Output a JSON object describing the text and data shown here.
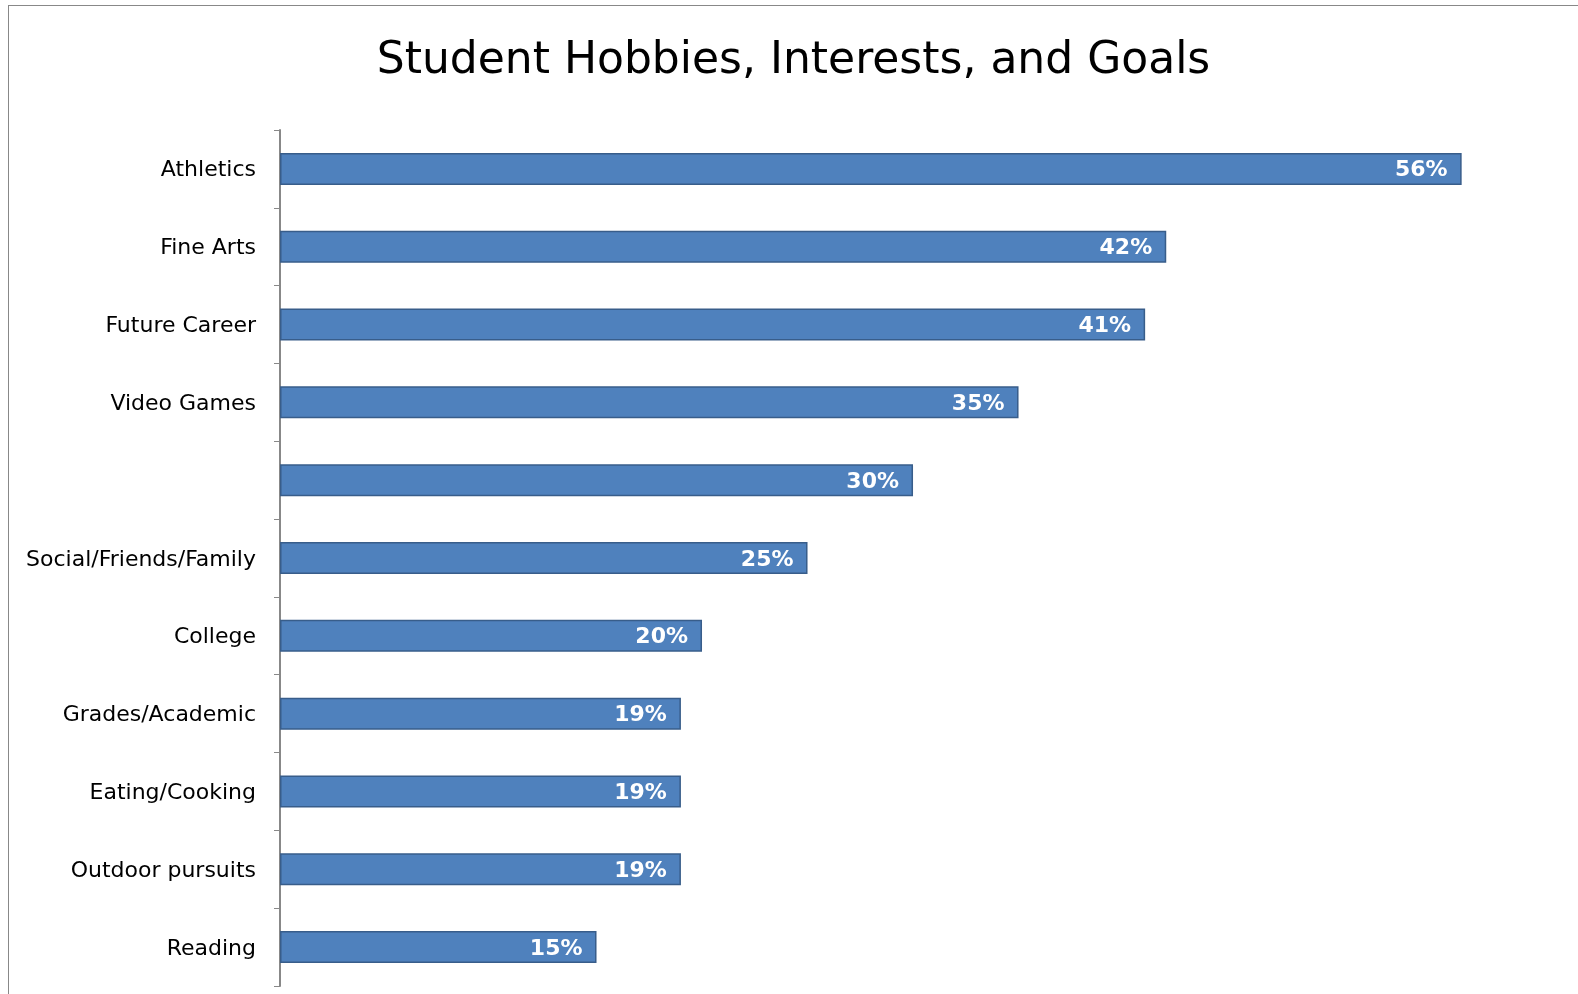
{
  "chart_data": {
    "type": "bar",
    "orientation": "horizontal",
    "title": "Student Hobbies, Interests, and Goals",
    "categories": [
      "Athletics",
      "Fine Arts",
      "Future Career",
      "Video Games",
      null,
      "Social/Friends/Family",
      "College",
      "Grades/Academic",
      "Eating/Cooking",
      "Outdoor pursuits",
      "Reading"
    ],
    "values": [
      56,
      42,
      41,
      35,
      30,
      25,
      20,
      19,
      19,
      19,
      15
    ],
    "value_labels": [
      "56%",
      "42%",
      "41%",
      "35%",
      "30%",
      "25%",
      "20%",
      "19%",
      "19%",
      "19%",
      "15%"
    ],
    "color": "#4f81bd"
  }
}
